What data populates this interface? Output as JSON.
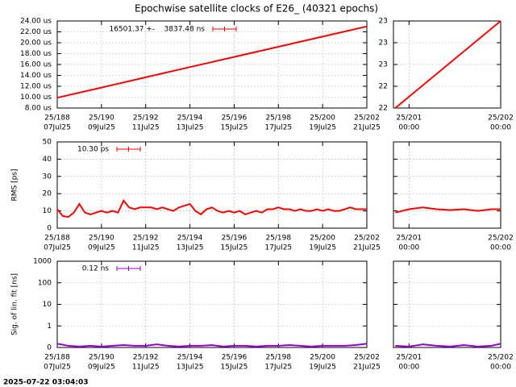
{
  "chart_data": [
    {
      "type": "line",
      "title": "Epochwise satellite clocks of E26_ (40321 epochs)",
      "x": [
        188,
        190,
        192,
        194,
        196,
        198,
        200,
        202
      ],
      "series": [
        {
          "name": "16501.37 +-    3837.48 ns",
          "color": "#ff0000",
          "values": [
            9.9,
            11.77,
            13.64,
            15.52,
            17.39,
            19.26,
            21.13,
            23.0
          ]
        }
      ],
      "xlim": [
        188,
        202
      ],
      "xticks": [
        {
          "value": 188,
          "label": "25/188",
          "sublabel": "07Jul25"
        },
        {
          "value": 190,
          "label": "25/190",
          "sublabel": "09Jul25"
        },
        {
          "value": 192,
          "label": "25/192",
          "sublabel": "11Jul25"
        },
        {
          "value": 194,
          "label": "25/194",
          "sublabel": "13Jul25"
        },
        {
          "value": 196,
          "label": "25/196",
          "sublabel": "15Jul25"
        },
        {
          "value": 198,
          "label": "25/198",
          "sublabel": "17Jul25"
        },
        {
          "value": 200,
          "label": "25/200",
          "sublabel": "19Jul25"
        },
        {
          "value": 202,
          "label": "25/202",
          "sublabel": "21Jul25"
        }
      ],
      "ylim": [
        8,
        24
      ],
      "yticks": [
        {
          "value": 8,
          "label": "8.00 us"
        },
        {
          "value": 10,
          "label": "10.00 us"
        },
        {
          "value": 12,
          "label": "12.00 us"
        },
        {
          "value": 14,
          "label": "14.00 us"
        },
        {
          "value": 16,
          "label": "16.00 us"
        },
        {
          "value": 18,
          "label": "18.00 us"
        },
        {
          "value": 20,
          "label": "20.00 us"
        },
        {
          "value": 22,
          "label": "22.00 us"
        },
        {
          "value": 24,
          "label": "24.00 us"
        }
      ],
      "grid": true,
      "log_y": false,
      "legend": "top-right"
    },
    {
      "type": "line",
      "x": [
        200.85,
        202
      ],
      "series": [
        {
          "color": "#ff0000",
          "values": [
            22.0,
            23.0
          ]
        }
      ],
      "xlim": [
        200.83,
        202
      ],
      "xticks": [
        {
          "value": 201,
          "label": "25/201",
          "sublabel": "00:00"
        },
        {
          "value": 202,
          "label": "25/202",
          "sublabel": "00:00"
        }
      ],
      "ylim": [
        22,
        23
      ],
      "yticks": [
        {
          "value": 22,
          "label": "22"
        },
        {
          "value": 22.25,
          "label": "22"
        },
        {
          "value": 22.5,
          "label": "23"
        },
        {
          "value": 22.75,
          "label": "23"
        },
        {
          "value": 23,
          "label": "23"
        }
      ],
      "grid": true,
      "log_y": false
    },
    {
      "type": "line",
      "y_label": "RMS [ps]",
      "x": [
        188,
        188.25,
        188.5,
        188.75,
        189,
        189.25,
        189.5,
        189.75,
        190,
        190.25,
        190.5,
        190.75,
        191,
        191.25,
        191.5,
        191.75,
        192,
        192.25,
        192.5,
        192.75,
        193,
        193.25,
        193.5,
        193.75,
        194,
        194.25,
        194.5,
        194.75,
        195,
        195.25,
        195.5,
        195.75,
        196,
        196.25,
        196.5,
        196.75,
        197,
        197.25,
        197.5,
        197.75,
        198,
        198.25,
        198.5,
        198.75,
        199,
        199.25,
        199.5,
        199.75,
        200,
        200.25,
        200.5,
        200.75,
        201,
        201.25,
        201.5,
        201.75,
        202
      ],
      "series": [
        {
          "name": "10.30 ps",
          "color": "#ff0000",
          "values": [
            11,
            7,
            6.5,
            9,
            14,
            9,
            8,
            9,
            10,
            9,
            10,
            9,
            16,
            12,
            11,
            12,
            12,
            12,
            11,
            12,
            11,
            10,
            12,
            13,
            14,
            10,
            8,
            11,
            12,
            10,
            9,
            10,
            9,
            10,
            8,
            9,
            10,
            9,
            11,
            11,
            12,
            11,
            11,
            10,
            11,
            10,
            10,
            11,
            10,
            11,
            10,
            10,
            11,
            12,
            11,
            11,
            11
          ]
        }
      ],
      "xlim": [
        188,
        202
      ],
      "xticks": [
        {
          "value": 188,
          "label": "25/188",
          "sublabel": "07Jul25"
        },
        {
          "value": 190,
          "label": "25/190",
          "sublabel": "09Jul25"
        },
        {
          "value": 192,
          "label": "25/192",
          "sublabel": "11Jul25"
        },
        {
          "value": 194,
          "label": "25/194",
          "sublabel": "13Jul25"
        },
        {
          "value": 196,
          "label": "25/196",
          "sublabel": "15Jul25"
        },
        {
          "value": 198,
          "label": "25/198",
          "sublabel": "17Jul25"
        },
        {
          "value": 200,
          "label": "25/200",
          "sublabel": "19Jul25"
        },
        {
          "value": 202,
          "label": "25/202",
          "sublabel": "21Jul25"
        }
      ],
      "ylim": [
        0,
        50
      ],
      "yticks": [
        0,
        10,
        20,
        30,
        40,
        50
      ],
      "grid": true,
      "log_y": false,
      "legend": "top-left"
    },
    {
      "type": "line",
      "x": [
        200.85,
        201,
        201.15,
        201.3,
        201.45,
        201.6,
        201.75,
        201.9,
        202
      ],
      "series": [
        {
          "color": "#ff0000",
          "values": [
            9,
            11,
            12,
            11,
            10.5,
            11,
            10,
            11,
            11
          ]
        }
      ],
      "xlim": [
        200.83,
        202
      ],
      "xticks": [
        {
          "value": 201,
          "label": "25/201",
          "sublabel": "00:00"
        },
        {
          "value": 202,
          "label": "25/202",
          "sublabel": "00:00"
        }
      ],
      "ylim": [
        0,
        50
      ],
      "yticks": [
        0,
        10,
        20,
        30,
        40,
        50
      ],
      "show_ytick_labels": false,
      "grid": true,
      "log_y": false
    },
    {
      "type": "line",
      "y_label": "Sig. of lin. fit [ns]",
      "x": [
        188,
        188.5,
        189,
        189.5,
        190,
        190.5,
        191,
        191.5,
        192,
        192.5,
        193,
        193.5,
        194,
        194.5,
        195,
        195.5,
        196,
        196.5,
        197,
        197.5,
        198,
        198.5,
        199,
        199.5,
        200,
        200.5,
        201,
        201.5,
        202
      ],
      "series": [
        {
          "name": "0.12 ns",
          "color": "#9400d3",
          "values": [
            0.15,
            0.12,
            0.11,
            0.12,
            0.11,
            0.12,
            0.13,
            0.12,
            0.12,
            0.14,
            0.12,
            0.11,
            0.12,
            0.12,
            0.13,
            0.11,
            0.12,
            0.12,
            0.11,
            0.12,
            0.12,
            0.13,
            0.12,
            0.11,
            0.12,
            0.12,
            0.12,
            0.13,
            0.15
          ]
        }
      ],
      "xlim": [
        188,
        202
      ],
      "xticks": [
        {
          "value": 188,
          "label": "25/188",
          "sublabel": "07Jul25"
        },
        {
          "value": 190,
          "label": "25/190",
          "sublabel": "09Jul25"
        },
        {
          "value": 192,
          "label": "25/192",
          "sublabel": "11Jul25"
        },
        {
          "value": 194,
          "label": "25/194",
          "sublabel": "13Jul25"
        },
        {
          "value": 196,
          "label": "25/196",
          "sublabel": "15Jul25"
        },
        {
          "value": 198,
          "label": "25/198",
          "sublabel": "17Jul25"
        },
        {
          "value": 200,
          "label": "25/200",
          "sublabel": "19Jul25"
        },
        {
          "value": 202,
          "label": "25/202",
          "sublabel": "21Jul25"
        }
      ],
      "ylim": [
        0.1,
        1000
      ],
      "yticks": [
        {
          "value": 0.1,
          "label": "0"
        },
        1,
        10,
        100,
        1000
      ],
      "grid": true,
      "log_y": true,
      "legend": "top-left"
    },
    {
      "type": "line",
      "x": [
        200.85,
        201,
        201.15,
        201.3,
        201.45,
        201.6,
        201.75,
        201.9,
        202
      ],
      "series": [
        {
          "color": "#9400d3",
          "values": [
            0.12,
            0.11,
            0.14,
            0.12,
            0.11,
            0.13,
            0.11,
            0.12,
            0.15
          ]
        }
      ],
      "xlim": [
        200.83,
        202
      ],
      "xticks": [
        {
          "value": 201,
          "label": "25/201",
          "sublabel": "00:00"
        },
        {
          "value": 202,
          "label": "25/202",
          "sublabel": "00:00"
        }
      ],
      "ylim": [
        0.1,
        1000
      ],
      "yticks": [
        {
          "value": 0.1,
          "label": "0"
        },
        1,
        10,
        100,
        1000
      ],
      "show_ytick_labels": false,
      "grid": true,
      "log_y": true
    }
  ],
  "timestamp": "2025-07-22 03:04:03"
}
